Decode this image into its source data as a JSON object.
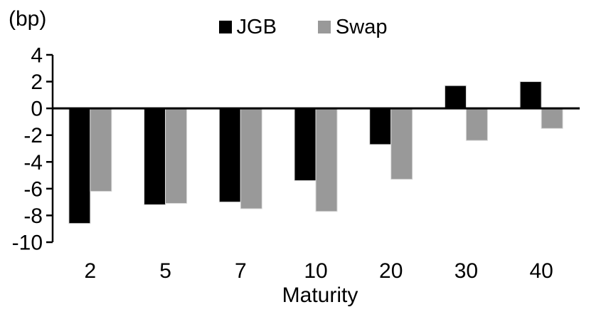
{
  "chart_data": {
    "type": "bar",
    "title": "",
    "categories": [
      "2",
      "5",
      "7",
      "10",
      "20",
      "30",
      "40"
    ],
    "series": [
      {
        "name": "JGB",
        "color": "#000000",
        "values": [
          -8.6,
          -7.2,
          -7.0,
          -5.4,
          -2.7,
          1.7,
          2.0
        ]
      },
      {
        "name": "Swap",
        "color": "#999999",
        "values": [
          -6.2,
          -7.1,
          -7.5,
          -7.7,
          -5.3,
          -2.4,
          -1.5
        ]
      }
    ],
    "xlabel": "Maturity",
    "ylabel": "(bp)",
    "ylim": [
      -10,
      4
    ],
    "yticks": [
      4,
      2,
      0,
      -2,
      -4,
      -6,
      -8,
      -10
    ],
    "grid": false,
    "legend_position": "top-center"
  },
  "colors": {
    "background": "#ffffff",
    "axis": "#000000",
    "text": "#000000",
    "bar_border": "#d9d9d9"
  }
}
